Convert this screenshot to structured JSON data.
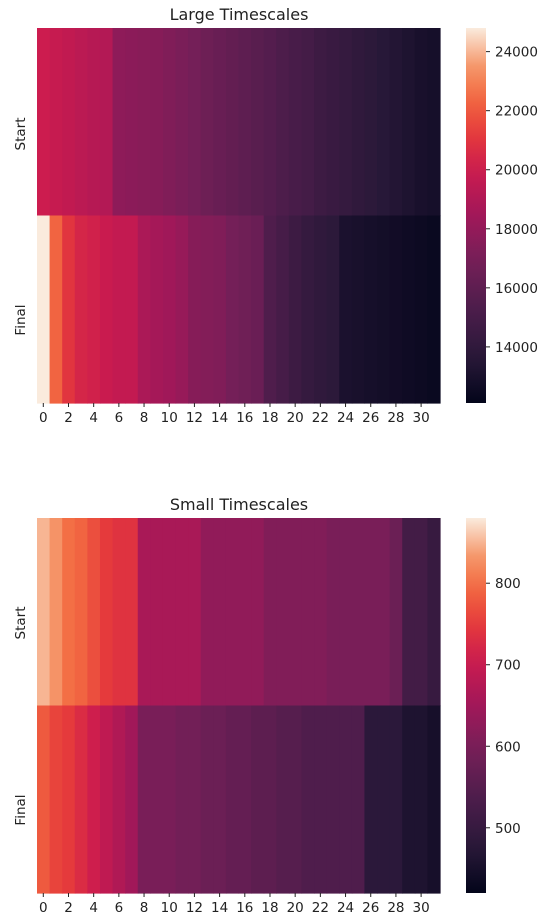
{
  "chart_data": [
    {
      "type": "heatmap",
      "title": "Large Timescales",
      "rows": [
        "Start",
        "Final"
      ],
      "x": [
        0,
        1,
        2,
        3,
        4,
        5,
        6,
        7,
        8,
        9,
        10,
        11,
        12,
        13,
        14,
        15,
        16,
        17,
        18,
        19,
        20,
        21,
        22,
        23,
        24,
        25,
        26,
        27,
        28,
        29,
        30,
        31
      ],
      "xticklabels": [
        "0",
        "2",
        "4",
        "6",
        "8",
        "10",
        "12",
        "14",
        "16",
        "18",
        "20",
        "22",
        "24",
        "26",
        "28",
        "30"
      ],
      "values": [
        [
          20000,
          19800,
          19600,
          19400,
          19200,
          19100,
          17800,
          17700,
          17600,
          17500,
          17300,
          17100,
          16900,
          16600,
          16400,
          16200,
          16000,
          15800,
          15600,
          15300,
          15100,
          14900,
          14600,
          14400,
          14200,
          14000,
          13800,
          13600,
          13400,
          13200,
          13000,
          12900
        ],
        [
          24800,
          22300,
          21000,
          20400,
          20200,
          19900,
          19700,
          19700,
          18800,
          18600,
          18400,
          18100,
          17500,
          17400,
          17300,
          16900,
          16700,
          16500,
          15400,
          15000,
          14600,
          14200,
          14000,
          13800,
          13100,
          13000,
          12900,
          12800,
          12700,
          12600,
          12500,
          12400
        ]
      ],
      "colorbar": {
        "min": 12100,
        "max": 24800,
        "ticks": [
          "14000",
          "16000",
          "18000",
          "20000",
          "22000",
          "24000"
        ]
      },
      "colormap": "rocket",
      "grid": false
    },
    {
      "type": "heatmap",
      "title": "Small Timescales",
      "rows": [
        "Start",
        "Final"
      ],
      "x": [
        0,
        1,
        2,
        3,
        4,
        5,
        6,
        7,
        8,
        9,
        10,
        11,
        12,
        13,
        14,
        15,
        16,
        17,
        18,
        19,
        20,
        21,
        22,
        23,
        24,
        25,
        26,
        27,
        28,
        29,
        30,
        31
      ],
      "xticklabels": [
        "0",
        "2",
        "4",
        "6",
        "8",
        "10",
        "12",
        "14",
        "16",
        "18",
        "20",
        "22",
        "24",
        "26",
        "28",
        "30"
      ],
      "values": [
        [
          850,
          830,
          800,
          790,
          770,
          750,
          740,
          740,
          660,
          660,
          660,
          660,
          660,
          630,
          630,
          630,
          630,
          630,
          610,
          610,
          610,
          610,
          610,
          600,
          600,
          600,
          600,
          600,
          580,
          520,
          520,
          500
        ],
        [
          780,
          760,
          750,
          730,
          710,
          690,
          670,
          650,
          600,
          600,
          600,
          590,
          590,
          580,
          580,
          570,
          570,
          560,
          560,
          550,
          550,
          540,
          540,
          540,
          540,
          540,
          480,
          480,
          480,
          460,
          460,
          450
        ]
      ],
      "colorbar": {
        "min": 420,
        "max": 880,
        "ticks": [
          "500",
          "600",
          "700",
          "800"
        ]
      },
      "colormap": "rocket",
      "grid": false
    }
  ]
}
